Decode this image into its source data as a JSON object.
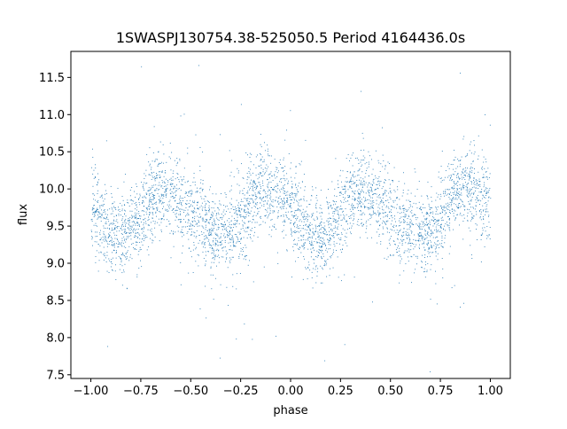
{
  "chart_data": {
    "type": "scatter",
    "title": "1SWASPJ130754.38-525050.5 Period 4164436.0s",
    "xlabel": "phase",
    "ylabel": "flux",
    "xlim": [
      -1.1,
      1.1
    ],
    "ylim": [
      7.45,
      11.85
    ],
    "xticks": [
      -1.0,
      -0.75,
      -0.5,
      -0.25,
      0.0,
      0.25,
      0.5,
      0.75,
      1.0
    ],
    "xtick_labels": [
      "−1.00",
      "−0.75",
      "−0.50",
      "−0.25",
      "0.00",
      "0.25",
      "0.50",
      "0.75",
      "1.00"
    ],
    "yticks": [
      7.5,
      8.0,
      8.5,
      9.0,
      9.5,
      10.0,
      10.5,
      11.0,
      11.5
    ],
    "ytick_labels": [
      "7.5",
      "8.0",
      "8.5",
      "9.0",
      "9.5",
      "10.0",
      "10.5",
      "11.0",
      "11.5"
    ],
    "grid": false,
    "legend": "none",
    "marker_color": "#1f77b4",
    "phase_range": [
      -1.0,
      1.0
    ],
    "typical_flux_range": [
      8.9,
      10.6
    ],
    "mean_flux": 9.7,
    "periodic_profile_one_cycle": {
      "phase": [
        0.0,
        0.05,
        0.1,
        0.15,
        0.2,
        0.25,
        0.3,
        0.35,
        0.4,
        0.45,
        0.5,
        0.55,
        0.6,
        0.65,
        0.7,
        0.75,
        0.8,
        0.85,
        0.9,
        0.95,
        1.0
      ],
      "flux": [
        9.8,
        9.55,
        9.4,
        9.35,
        9.45,
        9.65,
        9.9,
        9.95,
        9.95,
        9.8,
        9.7,
        9.55,
        9.45,
        9.4,
        9.45,
        9.6,
        9.85,
        10.05,
        10.0,
        9.9,
        9.8
      ]
    }
  }
}
